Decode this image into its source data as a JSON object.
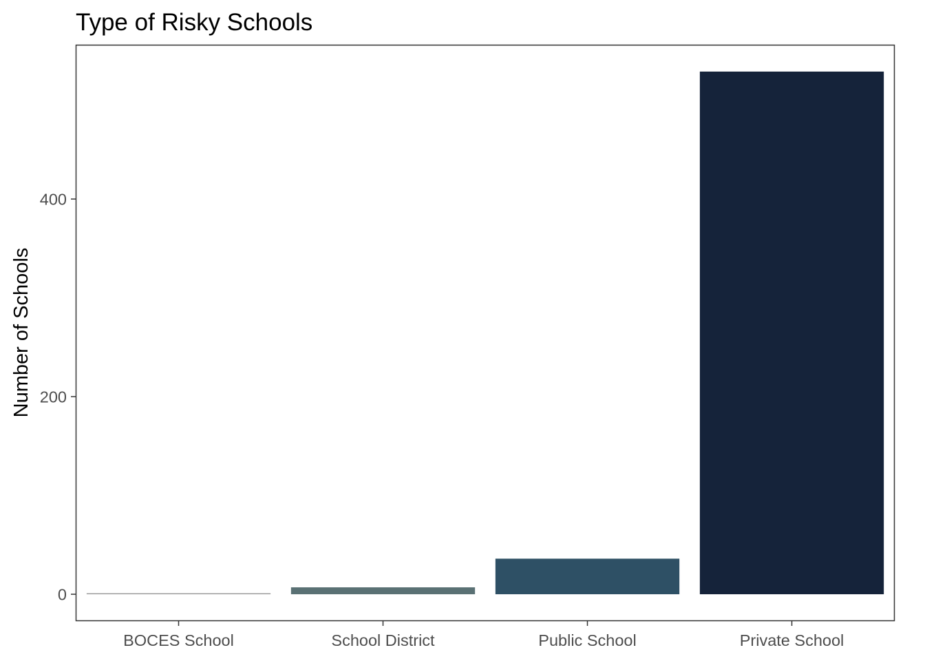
{
  "chart_data": {
    "type": "bar",
    "title": "Type of Risky Schools",
    "xlabel": "",
    "ylabel": "Number of Schools",
    "categories": [
      "BOCES School",
      "School District",
      "Public School",
      "Private School"
    ],
    "values": [
      1,
      7,
      36,
      529
    ],
    "colors": [
      "#999999",
      "#5a7174",
      "#2e5065",
      "#15233a"
    ],
    "yticks": [
      0,
      200,
      400
    ],
    "ytick_labels": [
      "0",
      "200",
      "400"
    ],
    "ylim": [
      -26.45,
      555.45
    ],
    "grid": false,
    "legend": "none"
  }
}
